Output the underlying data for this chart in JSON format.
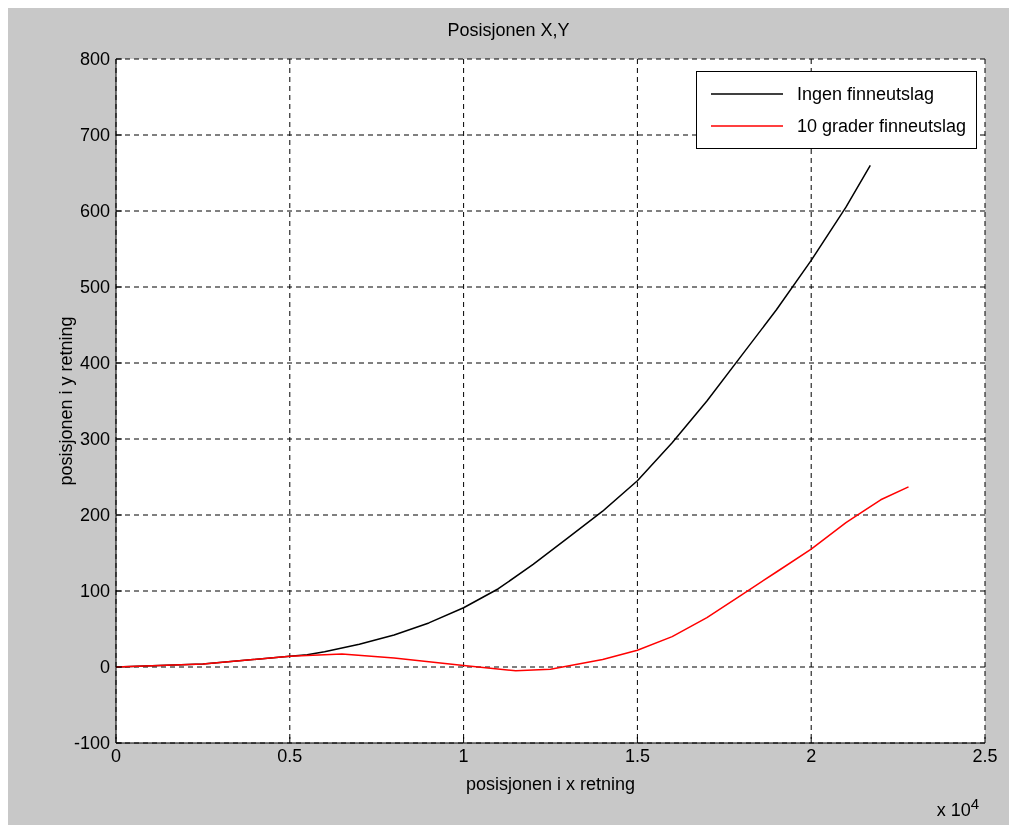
{
  "chart_data": {
    "type": "line",
    "title": "Posisjonen X,Y",
    "xlabel": "posisjonen i x retning",
    "ylabel": "posisjonen i y retning",
    "annotations": [
      "x 10$^{4}$"
    ],
    "xlim": [
      0,
      2.5
    ],
    "xticks": [
      0,
      0.5,
      1,
      1.5,
      2,
      2.5
    ],
    "ylim": [
      -100,
      800
    ],
    "yticks": [
      -100,
      0,
      100,
      200,
      300,
      400,
      500,
      600,
      700,
      800
    ],
    "grid": true,
    "legend": "top right",
    "line_style": "solid",
    "marker": "none",
    "series": [
      {
        "name": "Ingen finneutslag",
        "color": "#000000",
        "x": [
          0,
          0.25,
          0.5,
          0.55,
          0.6,
          0.7,
          0.8,
          0.9,
          1,
          1.1,
          1.2,
          1.3,
          1.4,
          1.5,
          1.6,
          1.7,
          1.8,
          1.9,
          2,
          2.1,
          2.17
        ],
        "values": [
          0,
          4,
          14,
          16,
          20,
          30,
          42,
          58,
          78,
          103,
          135,
          170,
          205,
          245,
          295,
          350,
          410,
          470,
          535,
          605,
          660
        ]
      },
      {
        "name": "10 grader finneutslag",
        "color": "#ff0000",
        "x": [
          0,
          0.25,
          0.5,
          0.65,
          0.8,
          1,
          1.15,
          1.25,
          1.4,
          1.5,
          1.6,
          1.7,
          1.8,
          1.9,
          2,
          2.1,
          2.2,
          2.28
        ],
        "values": [
          0,
          4,
          14,
          17,
          12,
          2,
          -5,
          -3,
          10,
          22,
          40,
          65,
          95,
          125,
          155,
          190,
          220,
          237
        ]
      }
    ]
  }
}
